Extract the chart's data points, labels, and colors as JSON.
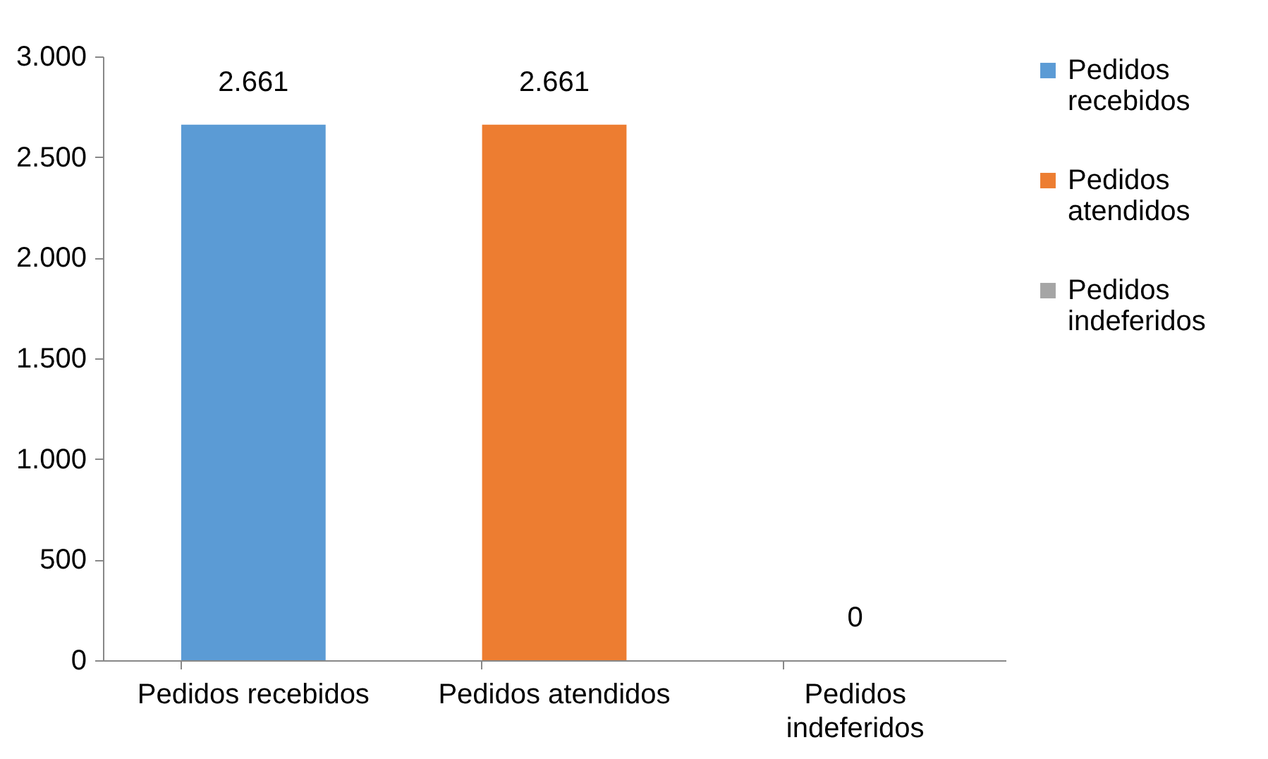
{
  "chart_data": {
    "type": "bar",
    "categories": [
      "Pedidos recebidos",
      "Pedidos atendidos",
      "Pedidos indeferidos"
    ],
    "series": [
      {
        "name": "Pedidos recebidos",
        "color": "#5b9bd5",
        "values": [
          2661,
          null,
          null
        ],
        "value_labels": [
          "2.661",
          null,
          null
        ]
      },
      {
        "name": "Pedidos atendidos",
        "color": "#ed7d31",
        "values": [
          null,
          2661,
          null
        ],
        "value_labels": [
          null,
          "2.661",
          null
        ]
      },
      {
        "name": "Pedidos indeferidos",
        "color": "#a5a5a5",
        "values": [
          null,
          null,
          0
        ],
        "value_labels": [
          null,
          null,
          "0"
        ]
      }
    ],
    "ylim": [
      0,
      3000
    ],
    "yticks": [
      0,
      500,
      {
        "value": 1000,
        "label": "1.000"
      },
      {
        "value": 1500,
        "label": "1.500"
      },
      {
        "value": 2000,
        "label": "2.000"
      },
      {
        "value": 2500,
        "label": "2.500"
      },
      {
        "value": 3000,
        "label": "3.000"
      }
    ],
    "grid": false,
    "legend": "right"
  }
}
